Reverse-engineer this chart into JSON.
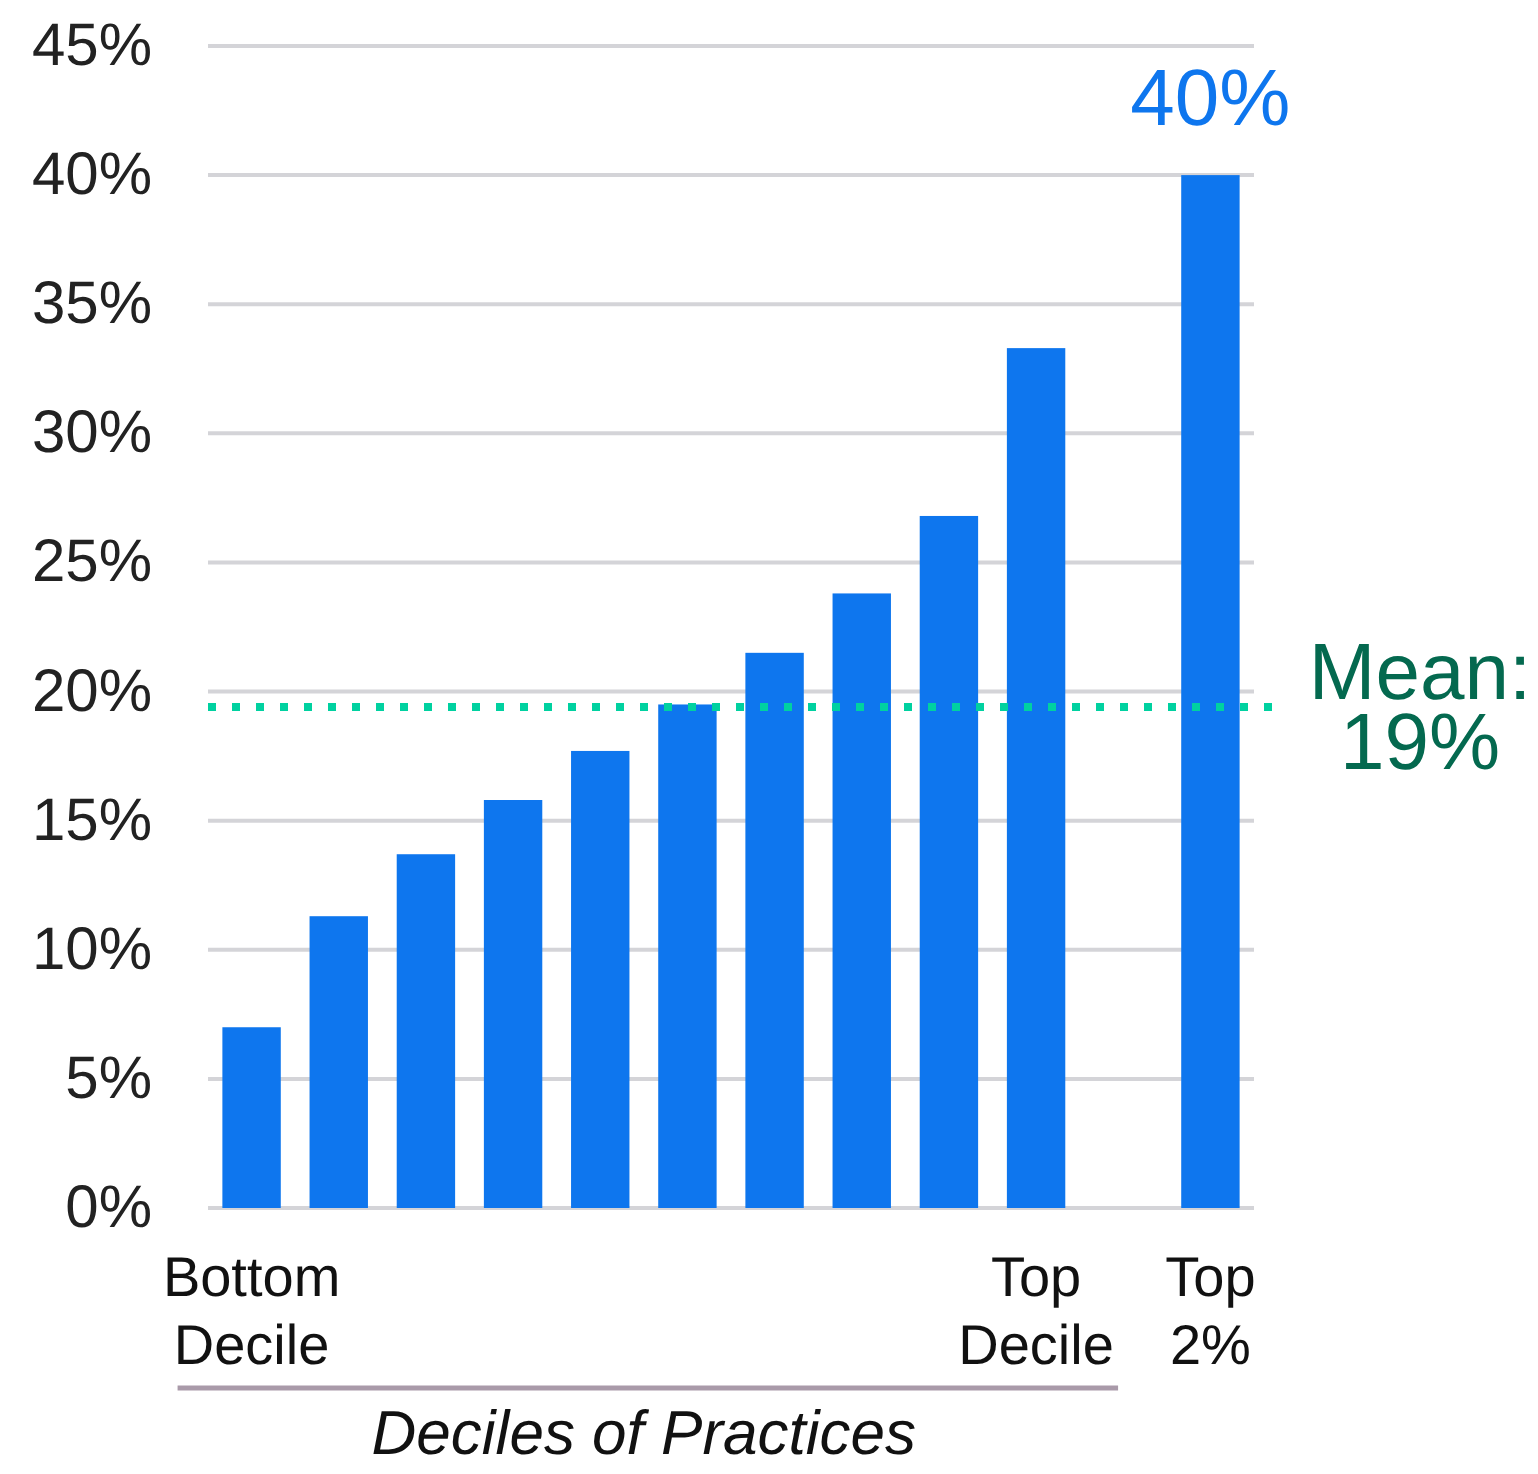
{
  "chart_data": {
    "type": "bar",
    "xlabel": "Deciles of Practices",
    "categories": [
      "Bottom\nDecile",
      null,
      null,
      null,
      null,
      null,
      null,
      null,
      null,
      "Top\nDecile",
      null,
      "Top\n2%"
    ],
    "values": [
      7.0,
      11.3,
      13.7,
      15.8,
      17.7,
      19.5,
      21.5,
      23.8,
      26.8,
      33.3,
      null,
      40
    ],
    "color": "#0e76ee",
    "value_labels": [
      null,
      null,
      null,
      null,
      null,
      null,
      null,
      null,
      null,
      null,
      null,
      "40%"
    ],
    "ylim": [
      0,
      45
    ],
    "yticks": [
      {
        "value": 0,
        "label": "0%"
      },
      {
        "value": 5,
        "label": "5%"
      },
      {
        "value": 10,
        "label": "10%"
      },
      {
        "value": 15,
        "label": "15%"
      },
      {
        "value": 20,
        "label": "20%"
      },
      {
        "value": 25,
        "label": "25%"
      },
      {
        "value": 30,
        "label": "30%"
      },
      {
        "value": 35,
        "label": "35%"
      },
      {
        "value": 40,
        "label": "40%"
      },
      {
        "value": 45,
        "label": "45%"
      }
    ],
    "grid": "y",
    "ref_lines": [
      {
        "axis": "y",
        "value": 19.4,
        "label": "Mean:\n19%",
        "color": "#00d1a0",
        "line_style": "dotted"
      }
    ]
  }
}
